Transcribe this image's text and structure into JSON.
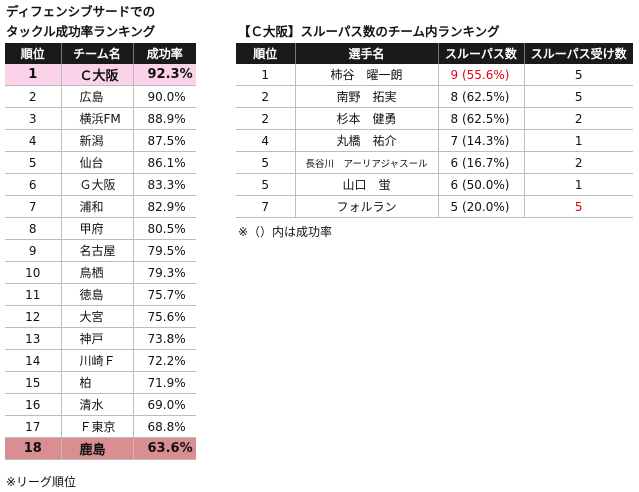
{
  "left": {
    "title_line1": "ディフェンシブサードでの",
    "title_line2": "タックル成功率ランキング",
    "headers": [
      "順位",
      "チーム名",
      "成功率"
    ],
    "rows": [
      {
        "rank": "1",
        "team": "Ｃ大阪",
        "rate": "92.3%"
      },
      {
        "rank": "2",
        "team": "広島",
        "rate": "90.0%"
      },
      {
        "rank": "3",
        "team": "横浜FM",
        "rate": "88.9%"
      },
      {
        "rank": "4",
        "team": "新潟",
        "rate": "87.5%"
      },
      {
        "rank": "5",
        "team": "仙台",
        "rate": "86.1%"
      },
      {
        "rank": "6",
        "team": "Ｇ大阪",
        "rate": "83.3%"
      },
      {
        "rank": "7",
        "team": "浦和",
        "rate": "82.9%"
      },
      {
        "rank": "8",
        "team": "甲府",
        "rate": "80.5%"
      },
      {
        "rank": "9",
        "team": "名古屋",
        "rate": "79.5%"
      },
      {
        "rank": "10",
        "team": "鳥栖",
        "rate": "79.3%"
      },
      {
        "rank": "11",
        "team": "徳島",
        "rate": "75.7%"
      },
      {
        "rank": "12",
        "team": "大宮",
        "rate": "75.6%"
      },
      {
        "rank": "13",
        "team": "神戸",
        "rate": "73.8%"
      },
      {
        "rank": "14",
        "team": "川崎Ｆ",
        "rate": "72.2%"
      },
      {
        "rank": "15",
        "team": "柏",
        "rate": "71.9%"
      },
      {
        "rank": "16",
        "team": "清水",
        "rate": "69.0%"
      },
      {
        "rank": "17",
        "team": "Ｆ東京",
        "rate": "68.8%"
      },
      {
        "rank": "18",
        "team": "鹿島",
        "rate": "63.6%"
      }
    ],
    "note": "※リーグ順位"
  },
  "right": {
    "title": "【Ｃ大阪】スルーパス数のチーム内ランキング",
    "headers": [
      "順位",
      "選手名",
      "スルーパス数",
      "スルーパス受け数"
    ],
    "rows": [
      {
        "rank": "1",
        "player": "柿谷　曜一朗",
        "passes": "9 (55.6%)",
        "received": "5"
      },
      {
        "rank": "2",
        "player": "南野　拓実",
        "passes": "8 (62.5%)",
        "received": "5"
      },
      {
        "rank": "2",
        "player": "杉本　健勇",
        "passes": "8 (62.5%)",
        "received": "2"
      },
      {
        "rank": "4",
        "player": "丸橋　祐介",
        "passes": "7 (14.3%)",
        "received": "1"
      },
      {
        "rank": "5",
        "player": "長谷川　アーリアジャスール",
        "passes": "6 (16.7%)",
        "received": "2"
      },
      {
        "rank": "5",
        "player": "山口　蛍",
        "passes": "6 (50.0%)",
        "received": "1"
      },
      {
        "rank": "7",
        "player": "フォルラン",
        "passes": "5 (20.0%)",
        "received": "5"
      }
    ],
    "note": "※（）内は成功率"
  },
  "colors": {
    "header_bg": "#1a1a1a",
    "top_row_bg": "#fbd3e9",
    "bottom_row_bg": "#d98e92",
    "highlight_text": "#e60012"
  }
}
